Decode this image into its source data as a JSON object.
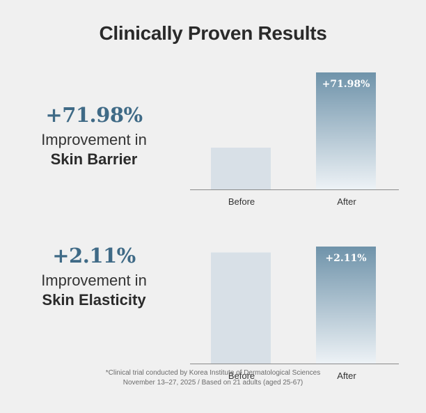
{
  "title": "Clinically Proven Results",
  "colors": {
    "accent": "#3f6a86",
    "bar_before": "#d8e0e7",
    "bar_after_top": "#6f93aa",
    "bar_after_bottom": "#edf2f6",
    "axis": "#8a8a8a"
  },
  "stats": [
    {
      "percent": "+71.98%",
      "line1": "Improvement in",
      "line2": "Skin Barrier"
    },
    {
      "percent": "+2.11%",
      "line1": "Improvement in",
      "line2": "Skin Elasticity"
    }
  ],
  "chart_data": [
    {
      "type": "bar",
      "categories": [
        "Before",
        "After"
      ],
      "values": [
        100,
        171.98
      ],
      "data_labels": [
        "",
        "+71.98%"
      ],
      "ylim": [
        0,
        171.98
      ],
      "xlabel": "",
      "ylabel": "",
      "grid": false
    },
    {
      "type": "bar",
      "categories": [
        "Before",
        "After"
      ],
      "values": [
        100,
        102.11
      ],
      "data_labels": [
        "",
        "+2.11%"
      ],
      "ylim": [
        0,
        102.11
      ],
      "xlabel": "",
      "ylabel": "",
      "grid": false
    }
  ],
  "footnote": {
    "line1": "*Clinical trial conducted by Korea Institute of Dermatological Sciences",
    "line2": "November 13–27, 2025 / Based on 21 adults (aged 25-67)"
  }
}
